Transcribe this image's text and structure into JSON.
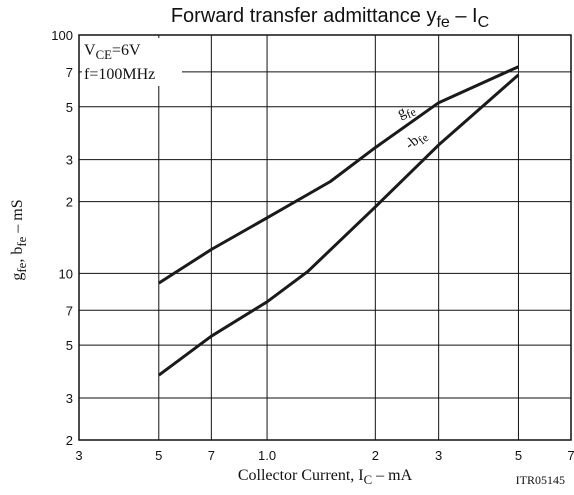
{
  "chart_data": {
    "type": "line",
    "title": [
      "Forward transfer admittance  y",
      "fe",
      " –  I",
      "C"
    ],
    "x_label": [
      "Collector Current, I",
      "C",
      "  –  mA"
    ],
    "y_label": [
      "g",
      "fe",
      ",  b",
      "fe",
      "   –   mS"
    ],
    "annotations": {
      "condition1": [
        "V",
        "CE",
        "=6V"
      ],
      "condition2": "f=100MHz",
      "code": "ITR05145"
    },
    "log_x": true,
    "log_y": true,
    "grid": true,
    "xlim": [
      0.3,
      7
    ],
    "ylim": [
      2,
      100
    ],
    "xticks": [
      {
        "value": 0.3,
        "label": "3"
      },
      {
        "value": 0.5,
        "label": "5"
      },
      {
        "value": 0.7,
        "label": "7"
      },
      {
        "value": 1,
        "label": "1.0"
      },
      2,
      3,
      5,
      7
    ],
    "yticks": [
      2,
      3,
      5,
      7,
      10,
      {
        "value": 20,
        "label": "2"
      },
      {
        "value": 30,
        "label": "3"
      },
      {
        "value": 50,
        "label": "5"
      },
      {
        "value": 70,
        "label": "7"
      },
      100
    ],
    "series": [
      {
        "label": [
          "g",
          "fe"
        ],
        "color": "#1a1a1a",
        "x": [
          0.5,
          0.7,
          1.0,
          1.5,
          2,
          3,
          5
        ],
        "values": [
          9.1,
          12.6,
          17.1,
          24.3,
          33.7,
          52,
          73.6
        ]
      },
      {
        "label": [
          "-b",
          "fe"
        ],
        "color": "#1a1a1a",
        "x": [
          0.5,
          0.7,
          1.0,
          1.3,
          2,
          3,
          5
        ],
        "values": [
          3.74,
          5.45,
          7.6,
          10.2,
          19,
          34.6,
          68
        ]
      }
    ]
  }
}
